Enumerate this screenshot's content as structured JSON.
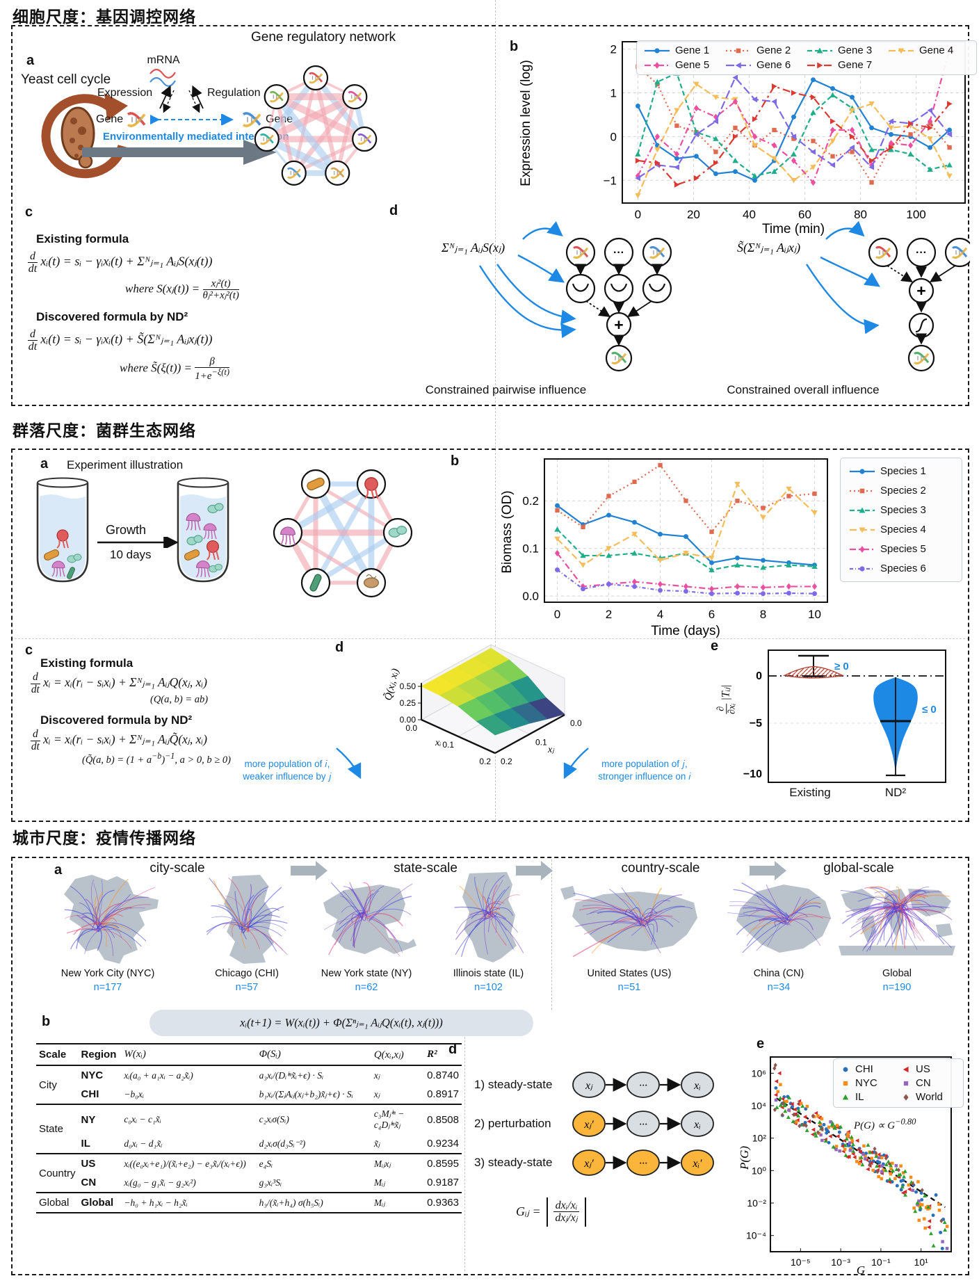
{
  "s1": {
    "title": "细胞尺度：基因调控网络",
    "a_label": "a",
    "yeast": "Yeast cell cycle",
    "mrna": "mRNA",
    "expression": "Expression",
    "regulation": "Regulation",
    "gene_left": "Gene",
    "gene_right": "Gene",
    "env": "Environmentally mediated interaction",
    "network_title": "Gene regulatory network",
    "b_label": "b",
    "c": {
      "label": "c",
      "h1": "Existing formula",
      "f1_num": "d",
      "f1_den": "dt",
      "f1": "xᵢ(t) = sᵢ − γᵢxᵢ(t) + Σᴺⱼ₌₁ AᵢⱼS(xⱼ(t))",
      "w1_pre": "where S(xⱼ(t)) =",
      "w1_num": "xⱼ²(t)",
      "w1_den": "θⱼ²+xⱼ²(t)",
      "h2": "Discovered formula by ND²",
      "f2": "xᵢ(t) = sᵢ − γᵢxᵢ(t) + S̃(Σᴺⱼ₌₁ Aᵢⱼxⱼ(t))",
      "w2_pre": "where S̃(ξ(t)) =",
      "w2_num": "β",
      "w2_den_html": "1+e<sup>−ξ(t)</sup>"
    },
    "d": {
      "label": "d",
      "formula_left": "Σᴺⱼ₌₁ AᵢⱼS(xⱼ)",
      "formula_right": "S̃(Σᴺⱼ₌₁ Aᵢⱼxⱼ)",
      "caption_left": "Constrained pairwise influence",
      "caption_right": "Constrained overall influence"
    }
  },
  "s2": {
    "title": "群落尺度：菌群生态网络",
    "a_label": "a",
    "a_title": "Experiment illustration",
    "growth": "Growth",
    "days": "10 days",
    "b_label": "b",
    "c": {
      "label": "c",
      "h1": "Existing formula",
      "f1_num": "d",
      "f1_den": "dt",
      "f1": "xᵢ = xᵢ(rᵢ − sᵢxᵢ) + Σᴺⱼ₌₁ AᵢⱼQ(xⱼ, xᵢ)",
      "note1": "(Q(a, b) = ab)",
      "h2": "Discovered formula by ND²",
      "f2": "xᵢ = xᵢ(rᵢ − sᵢxᵢ) + Σᴺⱼ₌₁ AᵢⱼQ̃(xⱼ, xᵢ)",
      "note2_html": "(Q̃(a, b) = (1 + a<sup>−b</sup>)<sup>−1</sup>,  a &gt; 0, b ≥ 0)"
    },
    "d_label": "d",
    "e_label": "e",
    "ann_left": "more population of 𝑖, weaker influence by 𝑗",
    "ann_right": "more population of 𝑗, stronger influence on 𝑖",
    "cat_existing": "Existing",
    "cat_nd2": "ND²"
  },
  "s3": {
    "title": "城市尺度：疫情传播网络",
    "a_label": "a",
    "scales": [
      "city-scale",
      "state-scale",
      "country-scale",
      "global-scale"
    ],
    "maps": [
      {
        "name": "New York City (NYC)",
        "n": "n=177"
      },
      {
        "name": "Chicago (CHI)",
        "n": "n=57"
      },
      {
        "name": "New York state (NY)",
        "n": "n=62"
      },
      {
        "name": "Illinois state (IL)",
        "n": "n=102"
      },
      {
        "name": "United States (US)",
        "n": "n=51"
      },
      {
        "name": "China (CN)",
        "n": "n=34"
      },
      {
        "name": "Global",
        "n": "n=190"
      }
    ],
    "b_label": "b",
    "pill": "xᵢ(t+1) = W(xᵢ(t)) + Φ(Σⁿⱼ₌₁ AᵢⱼQ(xᵢ(t), xⱼ(t)))",
    "table": {
      "headers": [
        "Scale",
        "Region",
        "W(xᵢ)",
        "Φ(Sᵢ)",
        "Q(xᵢ,xⱼ)",
        "R²"
      ],
      "groups": [
        {
          "scale": "City",
          "rows": [
            {
              "region": "NYC",
              "w": "xᵢ(a₀ + a₁xᵢ − a₂x̃ᵢ)",
              "phi": "a₃xᵢ/(Dᵢⁱⁿx̃ᵢ+ϵ) · Sᵢ",
              "q": "xⱼ",
              "r2": "0.8740"
            },
            {
              "region": "CHI",
              "w": "−b₀xᵢ",
              "phi": "b₁xᵢ/(ΣⱼAᵢⱼ(xⱼ+b₂)x̃ⱼ+ϵ) · Sᵢ",
              "q": "xⱼ",
              "r2": "0.8917"
            }
          ]
        },
        {
          "scale": "State",
          "rows": [
            {
              "region": "NY",
              "w": "c₀xᵢ − c₁x̃ᵢ",
              "phi": "c₂xᵢσ(Sᵢ)",
              "q": "c₃Mⱼⁱⁿ − c₄Dⱼⁱⁿx̃ⱼ",
              "r2": "0.8508"
            },
            {
              "region": "IL",
              "w": "d₀xᵢ − d₁x̃ᵢ",
              "phi": "d₂xᵢσ(d₃Sᵢ⁻²)",
              "q": "x̃ⱼ",
              "r2": "0.9234"
            }
          ]
        },
        {
          "scale": "Country",
          "rows": [
            {
              "region": "US",
              "w": "xᵢ((e₀xᵢ+e₁)/(x̃ᵢ+e₂) − e₃x̃ᵢ/(xᵢ+ϵ))",
              "phi": "e₄Sᵢ",
              "q": "Mᵢⱼxⱼ",
              "r2": "0.8595"
            },
            {
              "region": "CN",
              "w": "xᵢ(g₀ − g₁x̃ᵢ − g₂xᵢ²)",
              "phi": "g₃xᵢ³Sᵢ",
              "q": "Mᵢⱼ",
              "r2": "0.9187"
            }
          ]
        },
        {
          "scale": "Global",
          "rows": [
            {
              "region": "Global",
              "w": "−h₀ + h₁xᵢ − h₂x̃ᵢ",
              "phi": "h₃/(x̃ᵢ+h₄) σ(h₅Sᵢ)",
              "q": "Mᵢⱼ",
              "r2": "0.9363"
            }
          ]
        }
      ]
    },
    "d_label": "d",
    "steps": [
      {
        "label": "1) steady-state",
        "nodes": [
          [
            "xⱼ",
            "g"
          ],
          [
            "···",
            "g"
          ],
          [
            "xᵢ",
            "g"
          ]
        ]
      },
      {
        "label": "2) perturbation",
        "nodes": [
          [
            "xⱼ′",
            "o"
          ],
          [
            "···",
            "g"
          ],
          [
            "xᵢ",
            "g"
          ]
        ]
      },
      {
        "label": "3) steady-state",
        "nodes": [
          [
            "xⱼ′",
            "o"
          ],
          [
            "···",
            "o"
          ],
          [
            "xᵢ′",
            "o"
          ]
        ]
      }
    ],
    "g_lhs": "Gᵢⱼ =",
    "g_num": "dxᵢ/xᵢ",
    "g_den": "dxⱼ/xⱼ",
    "e_label": "e"
  },
  "chart_data": {
    "gene": {
      "type": "line",
      "xlabel": "Time (min)",
      "ylabel": "Expression level (log)",
      "xlim": [
        -5.6,
        117.6
      ],
      "ylim": [
        -1.52,
        2.17
      ],
      "xticks": [
        0,
        20,
        40,
        60,
        80,
        100
      ],
      "yticks": [
        -1,
        0,
        1,
        2
      ],
      "yticklabels": [
        "−1",
        "0",
        "1",
        "2"
      ],
      "x": [
        0,
        7,
        14,
        21,
        28,
        35,
        42,
        49,
        56,
        63,
        70,
        77,
        84,
        91,
        98,
        105,
        112
      ],
      "series": [
        {
          "name": "Gene 1",
          "color": "#2181d3",
          "dash": "",
          "marker": "circle",
          "values": [
            0.7,
            -0.2,
            -0.5,
            -0.45,
            -0.85,
            -0.8,
            -1.0,
            -0.55,
            0.45,
            1.3,
            1.1,
            0.9,
            0.2,
            0.05,
            0.0,
            -0.25,
            0.15
          ]
        },
        {
          "name": "Gene 2",
          "color": "#e06a50",
          "dash": "2 4",
          "marker": "square",
          "values": [
            1.6,
            1.2,
            0.25,
            0.1,
            -0.35,
            0.2,
            -0.2,
            0.15,
            -0.05,
            -0.1,
            -0.45,
            -0.35,
            -1.05,
            -0.2,
            0.05,
            0.3,
            -0.25
          ]
        },
        {
          "name": "Gene 3",
          "color": "#1fae89",
          "dash": "7 4",
          "marker": "tri-up",
          "values": [
            -0.4,
            1.25,
            1.45,
            0.1,
            -0.05,
            -0.55,
            -0.9,
            -0.8,
            -0.4,
            0.55,
            0.95,
            0.65,
            -0.3,
            -0.3,
            -0.4,
            -0.75,
            -0.65
          ]
        },
        {
          "name": "Gene 4",
          "color": "#f5bd5a",
          "dash": "10 4",
          "marker": "tri-down",
          "values": [
            -1.35,
            -0.3,
            0.6,
            1.2,
            0.9,
            0.85,
            -0.2,
            -0.5,
            -1.0,
            -0.7,
            -0.1,
            0.6,
            0.75,
            0.2,
            0.25,
            -0.05,
            -0.9
          ]
        },
        {
          "name": "Gene 5",
          "color": "#ec4fa0",
          "dash": "9 4 2 4",
          "marker": "diamond",
          "values": [
            -0.9,
            0.0,
            -0.4,
            0.65,
            0.45,
            0.8,
            0.0,
            -0.2,
            -0.55,
            -1.05,
            0.15,
            0.15,
            -0.65,
            -0.15,
            -0.2,
            0.35,
            2.0
          ]
        },
        {
          "name": "Gene 6",
          "color": "#7e6ae8",
          "dash": "12 5",
          "marker": "tri-left",
          "values": [
            -0.95,
            -0.65,
            -0.7,
            0.05,
            0.35,
            1.35,
            0.85,
            0.8,
            0.0,
            -0.35,
            -0.65,
            -0.25,
            -0.7,
            0.35,
            0.3,
            0.6,
            0.05
          ]
        },
        {
          "name": "Gene 7",
          "color": "#d93a34",
          "dash": "11 5 3 5",
          "marker": "tri-right",
          "values": [
            -0.55,
            -0.6,
            -1.1,
            -0.95,
            -0.6,
            0.0,
            0.4,
            1.15,
            1.0,
            0.9,
            0.35,
            0.0,
            -0.55,
            -0.25,
            0.3,
            0.2,
            0.75
          ]
        }
      ]
    },
    "species": {
      "type": "line",
      "xlabel": "Time (days)",
      "ylabel": "Biomass (OD)",
      "xlim": [
        -0.5,
        10.5
      ],
      "ylim": [
        -0.013,
        0.288
      ],
      "xticks": [
        0,
        2,
        4,
        6,
        8,
        10
      ],
      "yticks": [
        0,
        0.1,
        0.2
      ],
      "yticklabels": [
        "0.0",
        "0.1",
        "0.2"
      ],
      "x": [
        0,
        1,
        2,
        3,
        4,
        5,
        6,
        7,
        8,
        9,
        10
      ],
      "series": [
        {
          "name": "Species 1",
          "color": "#2181d3",
          "dash": "",
          "marker": "circle",
          "values": [
            0.19,
            0.15,
            0.17,
            0.155,
            0.13,
            0.125,
            0.07,
            0.08,
            0.075,
            0.07,
            0.065
          ]
        },
        {
          "name": "Species 2",
          "color": "#e06a50",
          "dash": "2 4",
          "marker": "square",
          "values": [
            0.18,
            0.145,
            0.21,
            0.24,
            0.275,
            0.2,
            0.135,
            0.2,
            0.185,
            0.21,
            0.215
          ]
        },
        {
          "name": "Species 3",
          "color": "#1fae89",
          "dash": "7 4",
          "marker": "tri-up",
          "values": [
            0.14,
            0.085,
            0.085,
            0.09,
            0.08,
            0.09,
            0.055,
            0.065,
            0.06,
            0.065,
            0.062
          ]
        },
        {
          "name": "Species 4",
          "color": "#f5bd5a",
          "dash": "10 5",
          "marker": "tri-down",
          "values": [
            0.12,
            0.065,
            0.1,
            0.13,
            0.075,
            0.09,
            0.08,
            0.235,
            0.165,
            0.225,
            0.175
          ]
        },
        {
          "name": "Species 5",
          "color": "#ec4fa0",
          "dash": "9 4 2 4",
          "marker": "diamond",
          "values": [
            0.09,
            0.02,
            0.025,
            0.03,
            0.025,
            0.02,
            0.015,
            0.02,
            0.018,
            0.02,
            0.02
          ]
        },
        {
          "name": "Species 6",
          "color": "#7e6ae8",
          "dash": "5 3 1 3",
          "marker": "circle",
          "values": [
            0.055,
            0.015,
            0.025,
            0.02,
            0.012,
            0.01,
            0.005,
            0.006,
            0.005,
            0.006,
            0.005
          ]
        }
      ]
    },
    "surface": {
      "type": "surface",
      "zlabel": "Q̃(xⱼ, xᵢ)",
      "xlabel": "xᵢ",
      "ylabel": "xⱼ",
      "zticks": [
        "0.00",
        "0.25",
        "0.50"
      ],
      "xticks": [
        "0.0",
        "0.1",
        "0.2"
      ],
      "yticks": [
        "0.0",
        "0.1",
        "0.2"
      ],
      "xi": [
        0,
        0.05,
        0.1,
        0.15,
        0.2
      ],
      "xj": [
        0,
        0.05,
        0.1,
        0.15,
        0.2
      ],
      "z": [
        [
          0.5,
          0.45,
          0.33,
          0.13,
          0.01
        ],
        [
          0.5,
          0.46,
          0.37,
          0.2,
          0.08
        ],
        [
          0.5,
          0.47,
          0.4,
          0.26,
          0.16
        ],
        [
          0.5,
          0.48,
          0.43,
          0.31,
          0.22
        ],
        [
          0.5,
          0.49,
          0.45,
          0.35,
          0.27
        ]
      ]
    },
    "violin": {
      "type": "violin",
      "categories": [
        "Existing",
        "ND²"
      ],
      "ylabel_num": "∂",
      "ylabel_den": "∂xᵢ",
      "ylabel_rest": "|Tᵢⱼ|",
      "yticks": [
        "0",
        "−5",
        "−10"
      ],
      "existing": {
        "note": "≥ 0",
        "whisker_top": 2.1,
        "center": 0.2
      },
      "nd2": {
        "note": "≤ 0",
        "min": -9.7,
        "max": 0,
        "median": -3.5
      },
      "colors": {
        "existing": "#c0392b",
        "nd2": "#1e88e5"
      }
    },
    "pg": {
      "type": "scatter",
      "xlabel": "G",
      "ylabel": "P(G)",
      "xscale": "log",
      "yscale": "log",
      "annotation_html": "P(G) ∝ G<sup>−0.80</sup>",
      "power_law_exponent": -0.8,
      "intercept": -0.5,
      "xticks": [
        "10⁻⁵",
        "10⁻³",
        "10⁻¹",
        "10¹"
      ],
      "xtick_exp": [
        -5,
        -3,
        -1,
        1
      ],
      "yticks": [
        "10⁶",
        "10⁴",
        "10²",
        "10⁰",
        "10⁻²",
        "10⁻⁴"
      ],
      "ytick_exp": [
        6,
        4,
        2,
        0,
        -2,
        -4
      ],
      "series": [
        {
          "name": "CHI",
          "color": "#2a6fbb",
          "marker": "circle",
          "n": 60,
          "seed": 11
        },
        {
          "name": "US",
          "color": "#d62728",
          "marker": "tri-left",
          "n": 60,
          "seed": 22
        },
        {
          "name": "NYC",
          "color": "#ff8c1a",
          "marker": "square",
          "n": 60,
          "seed": 33
        },
        {
          "name": "CN",
          "color": "#9467bd",
          "marker": "square",
          "n": 20,
          "seed": 44
        },
        {
          "name": "IL",
          "color": "#2ca02c",
          "marker": "tri-up",
          "n": 60,
          "seed": 55
        },
        {
          "name": "World",
          "color": "#8c564b",
          "marker": "diamond",
          "n": 18,
          "seed": 66
        }
      ]
    }
  }
}
